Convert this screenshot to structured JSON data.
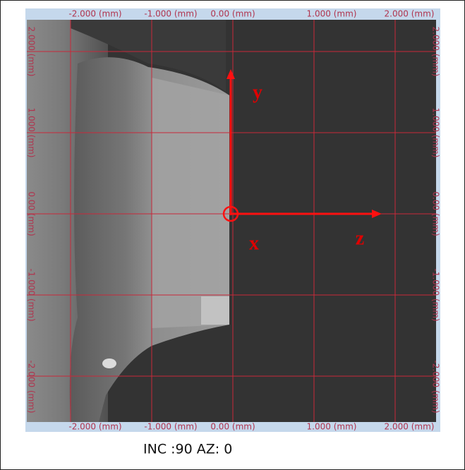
{
  "viewer": {
    "top_labels": [
      "-2.000 (mm)",
      "-1.000 (mm)",
      "0.00 (mm)",
      "1.000 (mm)",
      "2.000 (mm)"
    ],
    "bottom_labels": [
      "-2.000 (mm)",
      "-1.000 (mm)",
      "0.00 (mm)",
      "1.000 (mm)",
      "2.000 (mm)"
    ],
    "left_labels": [
      "2.000 (mm)",
      "1.000 (mm)",
      "0.00 (mm)",
      "-1.000 (mm)",
      "-2.000 (mm)"
    ],
    "right_labels": [
      "2.000 (mm)",
      "1.000 (mm)",
      "0.00 (mm)",
      "-1.000 (mm)",
      "-2.000 (mm)"
    ],
    "axis_labels": {
      "y": "y",
      "x": "x",
      "z": "z"
    },
    "caption": "INC :90 AZ: 0"
  }
}
